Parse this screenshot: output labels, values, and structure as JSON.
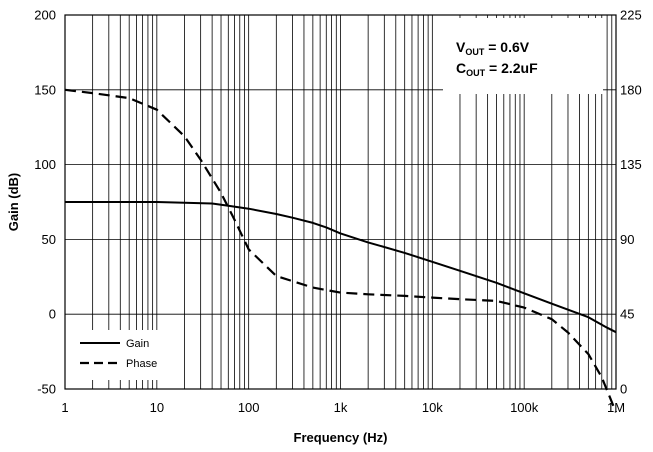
{
  "chart_data": {
    "type": "line",
    "xlabel": "Frequency (Hz)",
    "ylabel": "Gain (dB)",
    "x_scale": "log",
    "xlim": [
      1,
      1000000
    ],
    "ylim": [
      -50,
      200
    ],
    "y2lim": [
      0,
      225
    ],
    "grid": true,
    "legend_position": "bottom-left",
    "x_ticks": [
      {
        "value": 1,
        "label": "1"
      },
      {
        "value": 10,
        "label": "10"
      },
      {
        "value": 100,
        "label": "100"
      },
      {
        "value": 1000,
        "label": "1k"
      },
      {
        "value": 10000,
        "label": "10k"
      },
      {
        "value": 100000,
        "label": "100k"
      },
      {
        "value": 1000000,
        "label": "1M"
      }
    ],
    "y_ticks": [
      {
        "value": -50,
        "label": "-50"
      },
      {
        "value": 0,
        "label": "0"
      },
      {
        "value": 50,
        "label": "50"
      },
      {
        "value": 100,
        "label": "100"
      },
      {
        "value": 150,
        "label": "150"
      },
      {
        "value": 200,
        "label": "200"
      }
    ],
    "y2_ticks": [
      {
        "value": 0,
        "label": "0"
      },
      {
        "value": 45,
        "label": "45"
      },
      {
        "value": 90,
        "label": "90"
      },
      {
        "value": 135,
        "label": "135"
      },
      {
        "value": 180,
        "label": "180"
      },
      {
        "value": 225,
        "label": "225"
      }
    ],
    "annotations": {
      "vout": {
        "main": "V",
        "sub": "OUT",
        "rest": " = 0.6V"
      },
      "cout": {
        "main": "C",
        "sub": "OUT",
        "rest": " = 2.2uF"
      }
    },
    "series": [
      {
        "name": "Gain",
        "axis": "left",
        "line_style": "solid",
        "color": "#000000",
        "x": [
          1,
          2,
          5,
          10,
          20,
          40,
          60,
          100,
          200,
          300,
          500,
          700,
          1000,
          2000,
          5000,
          10000,
          20000,
          50000,
          100000,
          200000,
          500000,
          800000,
          1000000
        ],
        "y": [
          75,
          75,
          75,
          75,
          74.5,
          74,
          72.5,
          70.5,
          67,
          64.5,
          61,
          58,
          54,
          48,
          41,
          35,
          29,
          21,
          14,
          7,
          -2,
          -9,
          -12
        ]
      },
      {
        "name": "Phase",
        "axis": "right",
        "line_style": "dashed",
        "color": "#000000",
        "x": [
          1,
          2,
          5,
          10,
          20,
          30,
          50,
          70,
          100,
          200,
          500,
          1000,
          2000,
          5000,
          10000,
          20000,
          50000,
          100000,
          200000,
          300000,
          500000,
          700000,
          1000000
        ],
        "y": [
          180,
          178,
          175,
          168,
          152,
          138,
          118,
          102,
          84,
          68,
          61,
          58,
          57,
          56,
          55,
          54,
          53,
          49,
          42,
          34,
          21,
          7,
          -14
        ]
      }
    ]
  }
}
